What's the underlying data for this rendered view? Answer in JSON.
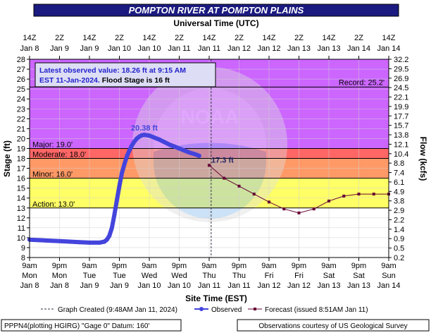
{
  "title": "POMPTON RIVER AT POMPTON PLAINS",
  "top_axis_title": "Universal Time (UTC)",
  "bottom_axis_title": "Site Time (EST)",
  "left_axis_title": "Stage (ft)",
  "right_axis_title": "Flow (kcfs)",
  "info_box": {
    "line1": "Latest observed value: 18.26 ft at 9:15 AM",
    "line2_a": "EST 11-Jan-2024. ",
    "line2_b": "Flood Stage is 16 ft"
  },
  "legend": {
    "graph_created": "Graph Created (9:48AM Jan 11, 2024)",
    "observed": "Observed",
    "forecast": "Forecast (issued 8:51AM Jan 11)"
  },
  "footer": {
    "left": "PPPN4(plotting HGIRG) \"Gage 0\" Datum: 160'",
    "right": "Observations courtesy of US Geological Survey"
  },
  "colors": {
    "record_zone": "#cc66ff",
    "major_zone": "#ff6666",
    "moderate_zone": "#ff9966",
    "minor_zone": "#ffff66",
    "observed": "#4444dd",
    "forecast": "#660033",
    "title_bg": "#1a1a80"
  },
  "chart_data": {
    "type": "line",
    "x_unit": "hours from 9am EST Mon Jan 8",
    "x_range": [
      0,
      144
    ],
    "ylim": [
      8,
      28
    ],
    "y_ticks": [
      8,
      9,
      10,
      11,
      12,
      13,
      14,
      15,
      16,
      17,
      18,
      19,
      20,
      21,
      22,
      23,
      24,
      25,
      26,
      27,
      28
    ],
    "flow_ticks": [
      "0.2",
      "0.5",
      "0.9",
      "1.4",
      "2.2",
      "2.9",
      "3.8",
      "4.9",
      "6.1",
      "7.4",
      "8.8",
      "10.4",
      "12.1",
      "13.8",
      "15.7",
      "17.7",
      "19.9",
      "22.1",
      "24.5",
      "26.9",
      "29.5",
      "32.2"
    ],
    "top_ticks": [
      {
        "x": 0,
        "l1": "14Z",
        "l2": "Jan 8"
      },
      {
        "x": 12,
        "l1": "2Z",
        "l2": "Jan 9"
      },
      {
        "x": 24,
        "l1": "14Z",
        "l2": "Jan 9"
      },
      {
        "x": 36,
        "l1": "2Z",
        "l2": "Jan 10"
      },
      {
        "x": 48,
        "l1": "14Z",
        "l2": "Jan 10"
      },
      {
        "x": 60,
        "l1": "2Z",
        "l2": "Jan 11"
      },
      {
        "x": 72,
        "l1": "14Z",
        "l2": "Jan 11"
      },
      {
        "x": 84,
        "l1": "2Z",
        "l2": "Jan 12"
      },
      {
        "x": 96,
        "l1": "14Z",
        "l2": "Jan 12"
      },
      {
        "x": 108,
        "l1": "2Z",
        "l2": "Jan 13"
      },
      {
        "x": 120,
        "l1": "14Z",
        "l2": "Jan 13"
      },
      {
        "x": 132,
        "l1": "2Z",
        "l2": "Jan 14"
      },
      {
        "x": 144,
        "l1": "14Z",
        "l2": "Jan 14"
      }
    ],
    "bottom_ticks": [
      {
        "x": 0,
        "l1": "9am",
        "l2": "Mon",
        "l3": "Jan 8"
      },
      {
        "x": 12,
        "l1": "9pm",
        "l2": "Mon",
        "l3": "Jan 8"
      },
      {
        "x": 24,
        "l1": "9am",
        "l2": "Tue",
        "l3": "Jan 9"
      },
      {
        "x": 36,
        "l1": "9pm",
        "l2": "Tue",
        "l3": "Jan 9"
      },
      {
        "x": 48,
        "l1": "9am",
        "l2": "Wed",
        "l3": "Jan 10"
      },
      {
        "x": 60,
        "l1": "9pm",
        "l2": "Wed",
        "l3": "Jan 10"
      },
      {
        "x": 72,
        "l1": "9am",
        "l2": "Thu",
        "l3": "Jan 11"
      },
      {
        "x": 84,
        "l1": "9pm",
        "l2": "Thu",
        "l3": "Jan 11"
      },
      {
        "x": 96,
        "l1": "9am",
        "l2": "Fri",
        "l3": "Jan 12"
      },
      {
        "x": 108,
        "l1": "9pm",
        "l2": "Fri",
        "l3": "Jan 12"
      },
      {
        "x": 120,
        "l1": "9am",
        "l2": "Sat",
        "l3": "Jan 13"
      },
      {
        "x": 132,
        "l1": "9pm",
        "l2": "Sat",
        "l3": "Jan 13"
      },
      {
        "x": 144,
        "l1": "9am",
        "l2": "Sun",
        "l3": "Jan 14"
      }
    ],
    "thresholds": [
      {
        "name": "Record",
        "label": "Record: 25.2'",
        "value": 25.2
      },
      {
        "name": "Major",
        "label": "Major: 19.0'",
        "value": 19.0
      },
      {
        "name": "Moderate",
        "label": "Moderate: 18.0'",
        "value": 18.0
      },
      {
        "name": "Minor",
        "label": "Minor: 16.0'",
        "value": 16.0
      },
      {
        "name": "Action",
        "label": "Action: 13.0'",
        "value": 13.0
      }
    ],
    "graph_created_x": 72.8,
    "observed": [
      [
        0,
        9.8
      ],
      [
        4,
        9.75
      ],
      [
        8,
        9.7
      ],
      [
        12,
        9.65
      ],
      [
        16,
        9.6
      ],
      [
        20,
        9.55
      ],
      [
        24,
        9.5
      ],
      [
        28,
        9.5
      ],
      [
        30,
        9.6
      ],
      [
        31,
        9.8
      ],
      [
        32,
        10.2
      ],
      [
        33,
        11.0
      ],
      [
        34,
        12.3
      ],
      [
        35,
        13.8
      ],
      [
        36,
        15.2
      ],
      [
        37,
        16.5
      ],
      [
        38,
        17.4
      ],
      [
        39,
        18.2
      ],
      [
        40,
        18.8
      ],
      [
        41,
        19.3
      ],
      [
        42,
        19.7
      ],
      [
        43,
        20.0
      ],
      [
        44,
        20.2
      ],
      [
        45,
        20.33
      ],
      [
        46,
        20.38
      ],
      [
        48,
        20.3
      ],
      [
        50,
        20.1
      ],
      [
        52,
        19.9
      ],
      [
        54,
        19.65
      ],
      [
        56,
        19.4
      ],
      [
        58,
        19.2
      ],
      [
        60,
        19.0
      ],
      [
        62,
        18.8
      ],
      [
        64,
        18.6
      ],
      [
        66,
        18.45
      ],
      [
        68,
        18.26
      ]
    ],
    "peak": {
      "x": 46,
      "y": 20.38,
      "label": "20.38 ft"
    },
    "forecast": [
      [
        72,
        17.3
      ],
      [
        78,
        16.0
      ],
      [
        84,
        15.2
      ],
      [
        90,
        14.4
      ],
      [
        96,
        13.6
      ],
      [
        102,
        12.9
      ],
      [
        108,
        12.5
      ],
      [
        114,
        12.9
      ],
      [
        120,
        13.7
      ],
      [
        126,
        14.2
      ],
      [
        132,
        14.4
      ],
      [
        138,
        14.4
      ],
      [
        144,
        14.4
      ]
    ],
    "forecast_label": {
      "x": 72,
      "y": 17.3,
      "label": "17.3 ft"
    },
    "noaa_watermark": "NOAA"
  }
}
